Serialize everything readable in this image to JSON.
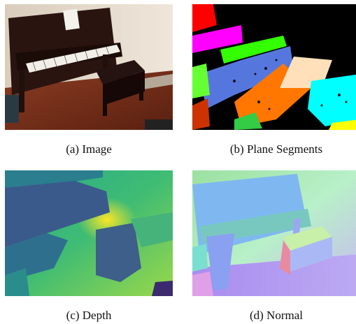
{
  "figure": {
    "panels": [
      {
        "id": "a",
        "caption": "(a) Image"
      },
      {
        "id": "b",
        "caption": "(b) Plane Segments"
      },
      {
        "id": "c",
        "caption": "(c) Depth"
      },
      {
        "id": "d",
        "caption": "(d) Normal"
      }
    ]
  },
  "colors": {
    "segment_red": "#ff0000",
    "segment_magenta": "#ff00ff",
    "segment_green": "#33ff00",
    "segment_blue": "#5577dd",
    "segment_orange": "#ff7700",
    "segment_peach": "#ffe0bb",
    "segment_cyan": "#00ffff",
    "segment_yellow": "#ffff00",
    "segment_black": "#000000"
  }
}
